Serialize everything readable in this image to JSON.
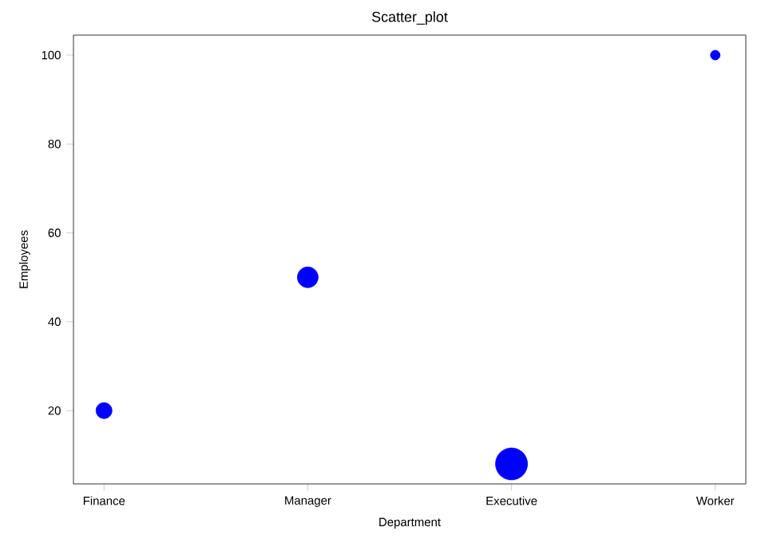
{
  "chart_data": {
    "type": "bubble",
    "title": "Scatter_plot",
    "xlabel": "Department",
    "ylabel": "Employees",
    "categories": [
      "Finance",
      "Manager",
      "Executive",
      "Worker"
    ],
    "values": [
      20,
      50,
      8,
      100
    ],
    "sizes": [
      0.25,
      0.42,
      1,
      0.09
    ],
    "color": "#0000ff",
    "marker": "circle",
    "ylim": [
      3.5,
      104.5
    ],
    "yticks": [
      20,
      40,
      60,
      80,
      100
    ]
  }
}
